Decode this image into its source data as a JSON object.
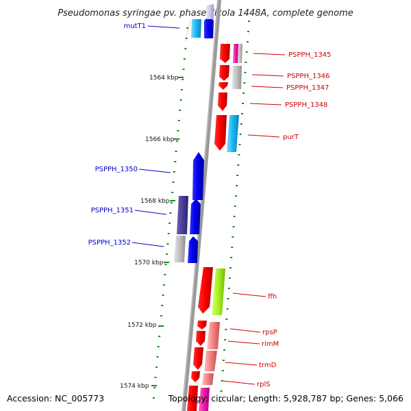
{
  "title": "Pseudomonas syringae pv. phaseolicola 1448A, complete genome",
  "footer": {
    "accession": "Accession: NC_005773",
    "topology": "Topology: circular; Length: 5,928,787 bp; Genes: 5,066"
  },
  "colors": {
    "backbone": "#888888",
    "dots": "#1a8a1a",
    "forward_label": "#0000cc",
    "reverse_label": "#cc0000"
  },
  "ticks": [
    {
      "label": "1564 kbp"
    },
    {
      "label": "1566 kbp"
    },
    {
      "label": "1568 kbp"
    },
    {
      "label": "1570 kbp"
    },
    {
      "label": "1572 kbp"
    },
    {
      "label": "1574 kbp"
    }
  ],
  "gene_labels": [
    {
      "text": "mutT1",
      "strand": "forward"
    },
    {
      "text": "PSPPH_1345",
      "strand": "reverse"
    },
    {
      "text": "PSPPH_1346",
      "strand": "reverse"
    },
    {
      "text": "PSPPH_1347",
      "strand": "reverse"
    },
    {
      "text": "PSPPH_1348",
      "strand": "reverse"
    },
    {
      "text": "purT",
      "strand": "reverse"
    },
    {
      "text": "PSPPH_1350",
      "strand": "forward"
    },
    {
      "text": "PSPPH_1351",
      "strand": "forward"
    },
    {
      "text": "PSPPH_1352",
      "strand": "forward"
    },
    {
      "text": "ffh",
      "strand": "reverse"
    },
    {
      "text": "rpsP",
      "strand": "reverse"
    },
    {
      "text": "rimM",
      "strand": "reverse"
    },
    {
      "text": "trmD",
      "strand": "reverse"
    },
    {
      "text": "rplS",
      "strand": "reverse"
    }
  ]
}
